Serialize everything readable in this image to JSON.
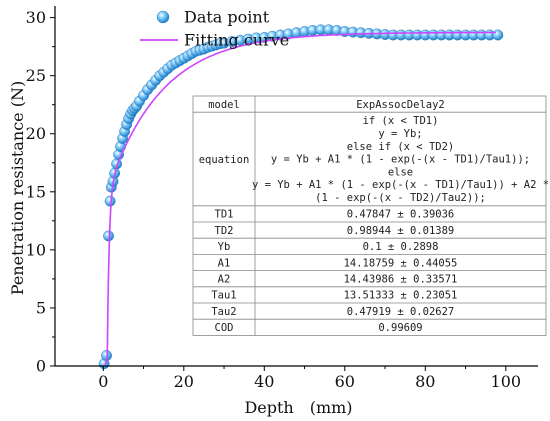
{
  "chart_data": {
    "type": "scatter",
    "xlabel": "Depth　(mm)",
    "ylabel": "Penetration resistance (N)",
    "xlim": [
      -12,
      108
    ],
    "ylim": [
      0,
      31
    ],
    "x_ticks": [
      "0",
      "20",
      "40",
      "60",
      "80",
      "100"
    ],
    "y_ticks": [
      "0",
      "5",
      "10",
      "15",
      "20",
      "25",
      "30"
    ],
    "legend": {
      "placement": "top-left",
      "entries": [
        {
          "label": "Data point",
          "kind": "marker",
          "color": "#3fa9e8"
        },
        {
          "label": "Fitting curve",
          "kind": "line",
          "color": "#cc44ff"
        }
      ]
    },
    "fit_model": {
      "model": "ExpAssocDelay2",
      "TD1": 0.47847,
      "TD2": 0.98944,
      "Yb": 0.1,
      "A1": 14.18759,
      "A2": 14.43986,
      "Tau1": 13.51333,
      "Tau2": 0.47919,
      "x_range": [
        0.5,
        98
      ]
    },
    "series": [
      {
        "name": "Data point",
        "x": [
          0.2,
          0.8,
          1.3,
          1.7,
          2.0,
          2.4,
          2.8,
          3.3,
          3.8,
          4.3,
          4.8,
          5.3,
          5.8,
          6.3,
          6.8,
          7.3,
          7.8,
          8.3,
          9,
          10,
          11,
          12,
          13,
          14,
          15,
          16,
          17,
          18,
          19,
          20,
          21,
          22,
          23,
          24,
          25,
          26,
          27,
          28,
          29,
          30,
          32,
          34,
          36,
          38,
          40,
          42,
          44,
          46,
          48,
          50,
          52,
          54,
          56,
          58,
          60,
          62,
          64,
          66,
          68,
          70,
          72,
          74,
          76,
          78,
          80,
          82,
          84,
          86,
          88,
          90,
          92,
          94,
          96,
          98
        ],
        "y": [
          0.2,
          0.9,
          11.2,
          14.2,
          15.4,
          15.9,
          16.6,
          17.4,
          18.2,
          18.9,
          19.6,
          20.2,
          20.8,
          21.3,
          21.7,
          22.0,
          22.2,
          22.4,
          22.8,
          23.3,
          23.8,
          24.2,
          24.6,
          25.0,
          25.3,
          25.6,
          25.9,
          26.1,
          26.3,
          26.5,
          26.7,
          26.9,
          27.1,
          27.2,
          27.3,
          27.45,
          27.55,
          27.65,
          27.75,
          27.8,
          27.95,
          28.05,
          28.15,
          28.25,
          28.3,
          28.4,
          28.5,
          28.6,
          28.7,
          28.8,
          28.9,
          28.95,
          28.95,
          28.9,
          28.8,
          28.75,
          28.7,
          28.65,
          28.6,
          28.55,
          28.5,
          28.5,
          28.5,
          28.5,
          28.5,
          28.5,
          28.5,
          28.5,
          28.5,
          28.5,
          28.5,
          28.5,
          28.5,
          28.5
        ],
        "color": "#3fa9e8"
      }
    ],
    "table": {
      "rows": [
        {
          "key": "model",
          "value": [
            "ExpAssocDelay2"
          ]
        },
        {
          "key": "equation",
          "value": [
            "if (x < TD1)",
            "y = Yb;",
            "else if (x < TD2)",
            "y = Yb + A1 * (1 - exp(-(x - TD1)/Tau1));",
            "else",
            "y = Yb + A1 * (1 - exp(-(x - TD1)/Tau1)) + A2 *",
            "(1 - exp(-(x - TD2)/Tau2));"
          ]
        },
        {
          "key": "TD1",
          "value": [
            "0.47847 ± 0.39036"
          ]
        },
        {
          "key": "TD2",
          "value": [
            "0.98944 ± 0.01389"
          ]
        },
        {
          "key": "Yb",
          "value": [
            "0.1 ± 0.2898"
          ]
        },
        {
          "key": "A1",
          "value": [
            "14.18759 ± 0.44055"
          ]
        },
        {
          "key": "A2",
          "value": [
            "14.43986 ± 0.33571"
          ]
        },
        {
          "key": "Tau1",
          "value": [
            "13.51333 ± 0.23051"
          ]
        },
        {
          "key": "Tau2",
          "value": [
            "0.47919 ± 0.02627"
          ]
        },
        {
          "key": "COD",
          "value": [
            "0.99609"
          ]
        }
      ]
    }
  }
}
